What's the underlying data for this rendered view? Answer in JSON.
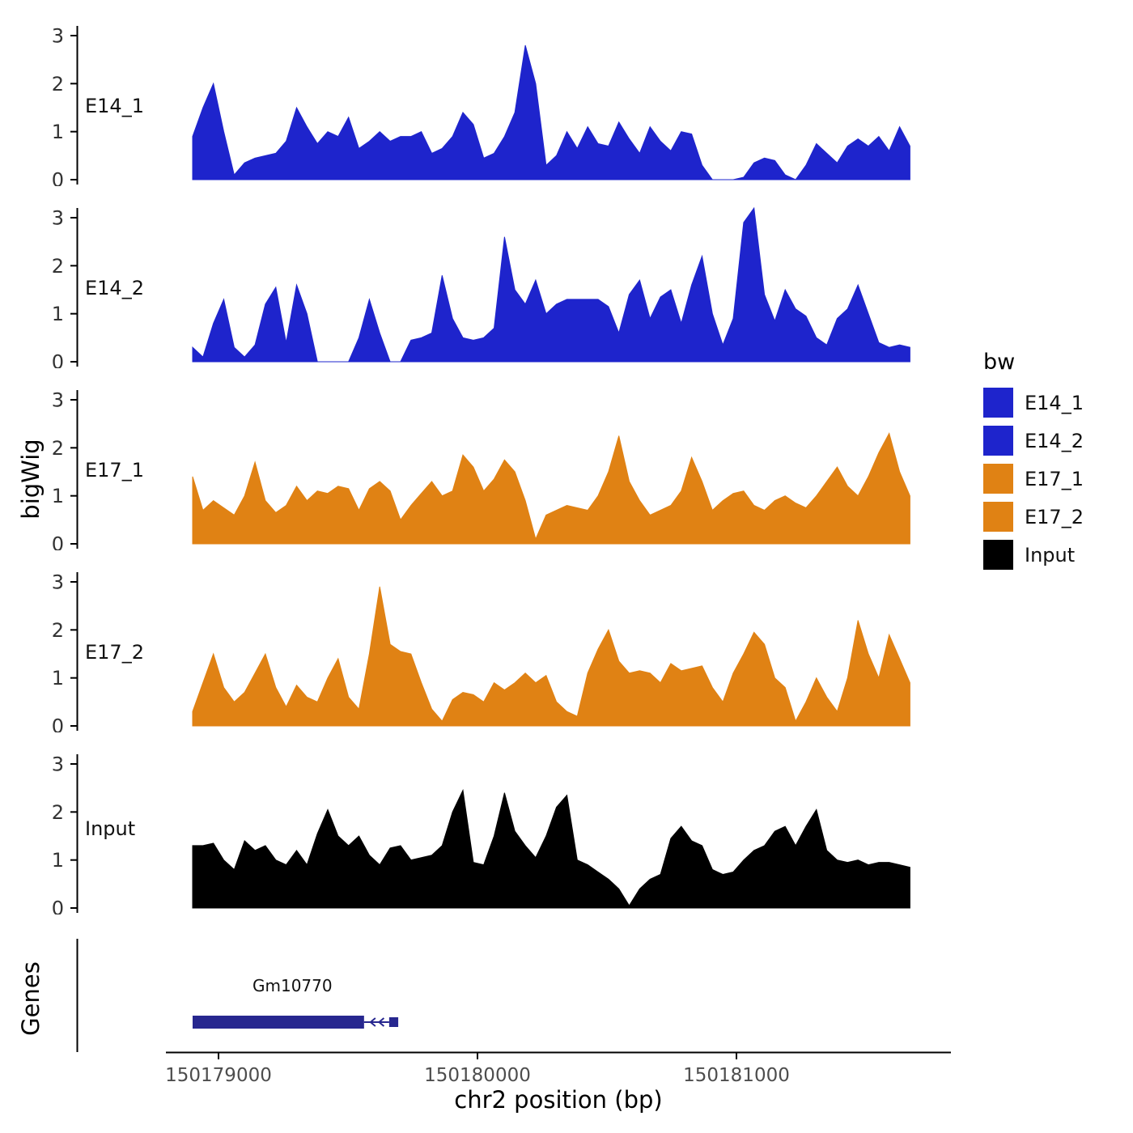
{
  "figure": {
    "ylab": "bigWig",
    "genes_lab": "Genes",
    "xlab": "chr2 position (bp)"
  },
  "legend": {
    "title": "bw",
    "items": [
      {
        "label": "E14_1",
        "color": "#1e24cc"
      },
      {
        "label": "E14_2",
        "color": "#1e24cc"
      },
      {
        "label": "E17_1",
        "color": "#e08214"
      },
      {
        "label": "E17_2",
        "color": "#e08214"
      },
      {
        "label": "Input",
        "color": "#000000"
      }
    ]
  },
  "chart_data": {
    "type": "area",
    "title": "",
    "xlabel": "chr2 position (bp)",
    "ylabel": "bigWig",
    "ylim": [
      0,
      3
    ],
    "y_ticks": [
      0,
      1,
      2,
      3
    ],
    "x_start": 150178900,
    "x_end": 150181670,
    "x_axis_ticks": [
      {
        "pos": 150179000,
        "label": "150179000"
      },
      {
        "pos": 150180000,
        "label": "150180000"
      },
      {
        "pos": 150181000,
        "label": "150181000"
      }
    ],
    "tracks": [
      {
        "name": "E14_1",
        "color": "#1e24cc",
        "values": [
          0.9,
          1.5,
          2.0,
          1.0,
          0.1,
          0.35,
          0.45,
          0.5,
          0.55,
          0.8,
          1.5,
          1.1,
          0.75,
          1.0,
          0.9,
          1.3,
          0.65,
          0.8,
          1.0,
          0.8,
          0.9,
          0.9,
          1.0,
          0.55,
          0.65,
          0.9,
          1.4,
          1.15,
          0.45,
          0.55,
          0.9,
          1.4,
          2.8,
          2.0,
          0.3,
          0.5,
          1.0,
          0.65,
          1.1,
          0.75,
          0.7,
          1.2,
          0.85,
          0.55,
          1.1,
          0.8,
          0.6,
          1.0,
          0.95,
          0.3,
          0.0,
          0.0,
          0.0,
          0.05,
          0.35,
          0.45,
          0.4,
          0.1,
          0.0,
          0.3,
          0.75,
          0.55,
          0.35,
          0.7,
          0.85,
          0.7,
          0.9,
          0.6,
          1.1,
          0.7
        ]
      },
      {
        "name": "E14_2",
        "color": "#1e24cc",
        "values": [
          0.3,
          0.1,
          0.8,
          1.3,
          0.3,
          0.1,
          0.35,
          1.2,
          1.55,
          0.4,
          1.6,
          1.0,
          0.0,
          0.0,
          0.0,
          0.0,
          0.5,
          1.3,
          0.6,
          0.0,
          0.0,
          0.45,
          0.5,
          0.6,
          1.8,
          0.9,
          0.5,
          0.45,
          0.5,
          0.7,
          2.6,
          1.5,
          1.2,
          1.7,
          1.0,
          1.2,
          1.3,
          1.3,
          1.3,
          1.3,
          1.15,
          0.6,
          1.4,
          1.7,
          0.9,
          1.35,
          1.5,
          0.8,
          1.6,
          2.2,
          1.0,
          0.35,
          0.9,
          2.9,
          3.2,
          1.4,
          0.85,
          1.5,
          1.1,
          0.95,
          0.5,
          0.35,
          0.9,
          1.1,
          1.6,
          1.0,
          0.4,
          0.3,
          0.35,
          0.3
        ]
      },
      {
        "name": "E17_1",
        "color": "#e08214",
        "values": [
          1.4,
          0.7,
          0.9,
          0.75,
          0.6,
          1.0,
          1.7,
          0.9,
          0.65,
          0.8,
          1.2,
          0.9,
          1.1,
          1.05,
          1.2,
          1.15,
          0.7,
          1.15,
          1.3,
          1.1,
          0.5,
          0.8,
          1.05,
          1.3,
          1.0,
          1.1,
          1.85,
          1.6,
          1.1,
          1.35,
          1.75,
          1.5,
          0.9,
          0.1,
          0.6,
          0.7,
          0.8,
          0.75,
          0.7,
          1.0,
          1.5,
          2.25,
          1.3,
          0.9,
          0.6,
          0.7,
          0.8,
          1.1,
          1.8,
          1.3,
          0.7,
          0.9,
          1.05,
          1.1,
          0.8,
          0.7,
          0.9,
          1.0,
          0.85,
          0.75,
          1.0,
          1.3,
          1.6,
          1.2,
          1.0,
          1.4,
          1.9,
          2.3,
          1.5,
          1.0
        ]
      },
      {
        "name": "E17_2",
        "color": "#e08214",
        "values": [
          0.3,
          0.9,
          1.5,
          0.8,
          0.5,
          0.7,
          1.1,
          1.5,
          0.8,
          0.4,
          0.85,
          0.6,
          0.5,
          1.0,
          1.4,
          0.6,
          0.35,
          1.5,
          2.9,
          1.7,
          1.55,
          1.5,
          0.9,
          0.35,
          0.1,
          0.55,
          0.7,
          0.65,
          0.5,
          0.9,
          0.75,
          0.9,
          1.1,
          0.9,
          1.05,
          0.5,
          0.3,
          0.2,
          1.1,
          1.6,
          2.0,
          1.35,
          1.1,
          1.15,
          1.1,
          0.9,
          1.3,
          1.15,
          1.2,
          1.25,
          0.8,
          0.5,
          1.1,
          1.5,
          1.95,
          1.7,
          1.0,
          0.8,
          0.1,
          0.5,
          1.0,
          0.6,
          0.3,
          1.0,
          2.2,
          1.5,
          1.0,
          1.9,
          1.4,
          0.9
        ]
      },
      {
        "name": "Input",
        "color": "#000000",
        "values": [
          1.3,
          1.3,
          1.35,
          1.0,
          0.8,
          1.4,
          1.2,
          1.3,
          1.0,
          0.9,
          1.2,
          0.9,
          1.55,
          2.05,
          1.5,
          1.3,
          1.5,
          1.1,
          0.9,
          1.25,
          1.3,
          1.0,
          1.05,
          1.1,
          1.3,
          2.0,
          2.45,
          0.95,
          0.9,
          1.5,
          2.4,
          1.6,
          1.3,
          1.05,
          1.5,
          2.1,
          2.35,
          1.0,
          0.9,
          0.75,
          0.6,
          0.4,
          0.05,
          0.4,
          0.6,
          0.7,
          1.45,
          1.7,
          1.4,
          1.3,
          0.8,
          0.7,
          0.75,
          1.0,
          1.2,
          1.3,
          1.6,
          1.7,
          1.3,
          1.7,
          2.05,
          1.2,
          1.0,
          0.95,
          1.0,
          0.9,
          0.95,
          0.95,
          0.9,
          0.85
        ]
      }
    ],
    "genes": {
      "axis_label": "Genes",
      "items": [
        {
          "label": "Gm10770",
          "start": 150178900,
          "thick_end": 150179562,
          "thin_end": 150179650,
          "tail_start": 150179659,
          "end": 150179694,
          "strand": "-",
          "color": "#27278f"
        }
      ]
    }
  }
}
